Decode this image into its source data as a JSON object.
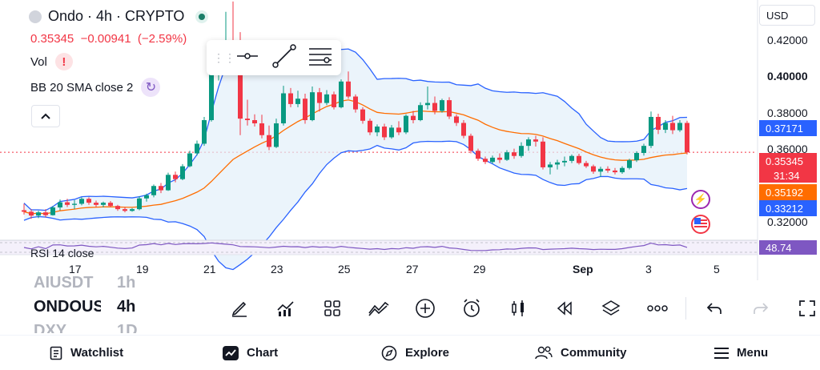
{
  "symbol": {
    "name": "Ondo",
    "interval": "4h",
    "exchange": "CRYPTO",
    "title": "Ondo · 4h · CRYPTO",
    "status_color": "#1a7e68"
  },
  "price_info": {
    "last": "0.35345",
    "change": "−0.00941",
    "change_pct": "(−2.59%)"
  },
  "indicators": {
    "volume_label": "Vol",
    "volume_warning": "!",
    "bb_label": "BB 20 SMA close 2",
    "rsi_label": "RSI 14 close"
  },
  "currency": "USD",
  "y_axis": {
    "ticks": [
      "0.42000",
      "0.40000",
      "0.38000",
      "0.36000",
      "0.32000"
    ],
    "bold_tick": "0.40000"
  },
  "price_labels": {
    "bb_upper": "0.37171",
    "last_price": "0.35345",
    "countdown": "31:34",
    "bb_basis": "0.35192",
    "bb_lower": "0.33212",
    "rsi_value": "48.74"
  },
  "x_axis": {
    "ticks": [
      "17",
      "19",
      "21",
      "23",
      "25",
      "27",
      "29",
      "Sep",
      "3",
      "5"
    ],
    "bold_tick": "Sep"
  },
  "colors": {
    "up": "#089981",
    "down": "#f23645",
    "bb_band": "#2962ff",
    "bb_basis": "#ff6d00",
    "bb_fill": "#e3f0fa",
    "rsi": "#7e57c2"
  },
  "chart_data": {
    "type": "candlestick",
    "y_range": [
      0.3125,
      0.4245
    ],
    "candles_ohlc": [
      [
        0.3265,
        0.3295,
        0.3245,
        0.3258
      ],
      [
        0.3258,
        0.327,
        0.3225,
        0.324
      ],
      [
        0.324,
        0.3262,
        0.3228,
        0.3255
      ],
      [
        0.3255,
        0.327,
        0.3232,
        0.3242
      ],
      [
        0.3242,
        0.3285,
        0.324,
        0.3278
      ],
      [
        0.3278,
        0.3315,
        0.3265,
        0.3302
      ],
      [
        0.3302,
        0.3318,
        0.328,
        0.329
      ],
      [
        0.329,
        0.3312,
        0.327,
        0.3295
      ],
      [
        0.3295,
        0.3325,
        0.3288,
        0.3318
      ],
      [
        0.3318,
        0.3325,
        0.329,
        0.33
      ],
      [
        0.33,
        0.331,
        0.328,
        0.329
      ],
      [
        0.329,
        0.3305,
        0.3278,
        0.33
      ],
      [
        0.33,
        0.3308,
        0.3278,
        0.3285
      ],
      [
        0.3285,
        0.329,
        0.3262,
        0.327
      ],
      [
        0.327,
        0.328,
        0.3255,
        0.3262
      ],
      [
        0.3262,
        0.3275,
        0.3258,
        0.327
      ],
      [
        0.327,
        0.333,
        0.3265,
        0.332
      ],
      [
        0.332,
        0.3342,
        0.3305,
        0.3335
      ],
      [
        0.3335,
        0.3385,
        0.3325,
        0.3378
      ],
      [
        0.3378,
        0.3392,
        0.3345,
        0.3358
      ],
      [
        0.3358,
        0.344,
        0.3355,
        0.343
      ],
      [
        0.343,
        0.3445,
        0.3395,
        0.341
      ],
      [
        0.341,
        0.348,
        0.3405,
        0.347
      ],
      [
        0.347,
        0.3542,
        0.3465,
        0.353
      ],
      [
        0.353,
        0.359,
        0.352,
        0.3575
      ],
      [
        0.3575,
        0.37,
        0.3565,
        0.3685
      ],
      [
        0.3685,
        0.3975,
        0.3678,
        0.3905
      ],
      [
        0.3905,
        0.401,
        0.387,
        0.3985
      ],
      [
        0.3985,
        0.419,
        0.396,
        0.4
      ],
      [
        0.4,
        0.4238,
        0.3945,
        0.3975
      ],
      [
        0.3975,
        0.4095,
        0.3615,
        0.3692
      ],
      [
        0.3692,
        0.378,
        0.366,
        0.3685
      ],
      [
        0.3685,
        0.3712,
        0.3655,
        0.367
      ],
      [
        0.367,
        0.371,
        0.36,
        0.3615
      ],
      [
        0.3615,
        0.366,
        0.3545,
        0.356
      ],
      [
        0.356,
        0.3692,
        0.3555,
        0.367
      ],
      [
        0.367,
        0.3845,
        0.366,
        0.381
      ],
      [
        0.381,
        0.3835,
        0.3745,
        0.376
      ],
      [
        0.376,
        0.3822,
        0.3745,
        0.3785
      ],
      [
        0.3785,
        0.3808,
        0.3668,
        0.3685
      ],
      [
        0.3685,
        0.3842,
        0.368,
        0.3815
      ],
      [
        0.3815,
        0.3835,
        0.3725,
        0.3765
      ],
      [
        0.3765,
        0.3825,
        0.3755,
        0.3805
      ],
      [
        0.3805,
        0.3818,
        0.3735,
        0.3745
      ],
      [
        0.3745,
        0.3875,
        0.374,
        0.3865
      ],
      [
        0.3865,
        0.3912,
        0.3785,
        0.3795
      ],
      [
        0.3795,
        0.3805,
        0.372,
        0.3735
      ],
      [
        0.3735,
        0.3745,
        0.3668,
        0.3682
      ],
      [
        0.3682,
        0.3692,
        0.3615,
        0.3628
      ],
      [
        0.3628,
        0.3665,
        0.361,
        0.3655
      ],
      [
        0.3655,
        0.3668,
        0.3592,
        0.3605
      ],
      [
        0.3605,
        0.3662,
        0.3598,
        0.365
      ],
      [
        0.365,
        0.368,
        0.3615,
        0.3628
      ],
      [
        0.3628,
        0.3712,
        0.362,
        0.3705
      ],
      [
        0.3705,
        0.3728,
        0.367,
        0.3685
      ],
      [
        0.3685,
        0.3768,
        0.368,
        0.3755
      ],
      [
        0.3755,
        0.3842,
        0.3735,
        0.3765
      ],
      [
        0.3765,
        0.3795,
        0.3712,
        0.3728
      ],
      [
        0.3728,
        0.3785,
        0.372,
        0.3778
      ],
      [
        0.3778,
        0.3792,
        0.369,
        0.3702
      ],
      [
        0.3702,
        0.3712,
        0.3658,
        0.3672
      ],
      [
        0.3672,
        0.3685,
        0.36,
        0.3612
      ],
      [
        0.3612,
        0.3622,
        0.353,
        0.3542
      ],
      [
        0.3542,
        0.3552,
        0.3495,
        0.3505
      ],
      [
        0.3505,
        0.3515,
        0.348,
        0.349
      ],
      [
        0.349,
        0.352,
        0.3482,
        0.351
      ],
      [
        0.351,
        0.353,
        0.3485,
        0.35
      ],
      [
        0.35,
        0.3545,
        0.3495,
        0.3535
      ],
      [
        0.3535,
        0.3552,
        0.3505,
        0.3518
      ],
      [
        0.3518,
        0.3582,
        0.351,
        0.3565
      ],
      [
        0.3565,
        0.3605,
        0.3542,
        0.3595
      ],
      [
        0.3595,
        0.3612,
        0.3562,
        0.3585
      ],
      [
        0.3585,
        0.3605,
        0.3455,
        0.3465
      ],
      [
        0.3465,
        0.349,
        0.3432,
        0.3478
      ],
      [
        0.3478,
        0.35,
        0.3455,
        0.3488
      ],
      [
        0.3488,
        0.3515,
        0.347,
        0.3495
      ],
      [
        0.3495,
        0.3525,
        0.3485,
        0.3518
      ],
      [
        0.3518,
        0.3528,
        0.3478,
        0.3485
      ],
      [
        0.3485,
        0.3495,
        0.3462,
        0.347
      ],
      [
        0.347,
        0.3478,
        0.3435,
        0.3445
      ],
      [
        0.3445,
        0.3468,
        0.342,
        0.3458
      ],
      [
        0.3458,
        0.347,
        0.344,
        0.345
      ],
      [
        0.345,
        0.3462,
        0.3432,
        0.3442
      ],
      [
        0.3442,
        0.347,
        0.3435,
        0.3462
      ],
      [
        0.3462,
        0.3505,
        0.3455,
        0.3498
      ],
      [
        0.3498,
        0.354,
        0.349,
        0.3532
      ],
      [
        0.3532,
        0.3575,
        0.352,
        0.3565
      ],
      [
        0.3565,
        0.3725,
        0.3555,
        0.37
      ],
      [
        0.37,
        0.3715,
        0.362,
        0.364
      ],
      [
        0.364,
        0.3685,
        0.3625,
        0.3672
      ],
      [
        0.3672,
        0.3705,
        0.362,
        0.3638
      ],
      [
        0.3638,
        0.3685,
        0.363,
        0.3672
      ],
      [
        0.3672,
        0.3682,
        0.3525,
        0.3535
      ]
    ]
  },
  "toolbar": {
    "symbols": [
      {
        "name": "AIUSDT",
        "interval": "1h"
      },
      {
        "name": "ONDOUSDT",
        "interval": "4h"
      },
      {
        "name": "DXY",
        "interval": "1D"
      }
    ],
    "tools": [
      "pen-tool-icon",
      "indicators-icon",
      "layouts-icon",
      "trend-line-icon",
      "add-icon",
      "alert-clock-icon",
      "candle-type-icon",
      "replay-icon",
      "layers-icon",
      "more-icon"
    ]
  },
  "nav": {
    "watchlist": "Watchlist",
    "chart": "Chart",
    "explore": "Explore",
    "community": "Community",
    "menu": "Menu"
  }
}
